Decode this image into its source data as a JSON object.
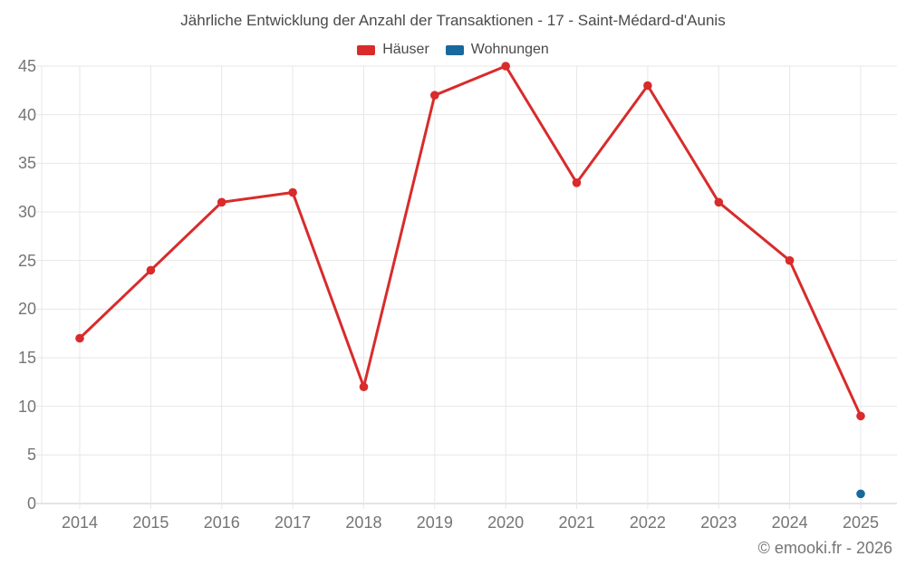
{
  "chart_data": {
    "type": "line",
    "title": "Jährliche Entwicklung der Anzahl der Transaktionen - 17 - Saint-Médard-d'Aunis",
    "categories": [
      "2014",
      "2015",
      "2016",
      "2017",
      "2018",
      "2019",
      "2020",
      "2021",
      "2022",
      "2023",
      "2024",
      "2025"
    ],
    "series": [
      {
        "name": "Häuser",
        "color": "#d92b2b",
        "values": [
          17,
          24,
          31,
          32,
          12,
          42,
          45,
          33,
          43,
          31,
          25,
          9
        ]
      },
      {
        "name": "Wohnungen",
        "color": "#17699e",
        "values": [
          null,
          null,
          null,
          null,
          null,
          null,
          null,
          null,
          null,
          null,
          null,
          1
        ]
      }
    ],
    "ylim": [
      0,
      45
    ],
    "yticks": [
      0,
      5,
      10,
      15,
      20,
      25,
      30,
      35,
      40,
      45
    ],
    "grid": true,
    "legend_position": "top",
    "marker_radius": 4.8,
    "line_width": 3
  },
  "colors": {
    "background": "#ffffff",
    "title_text": "#4a4a4a",
    "axis_label_text": "#757575",
    "gridline": "#e7e7e7",
    "axis_line": "#c9c9c9"
  },
  "footer": {
    "copyright": "© emooki.fr - 2026"
  }
}
